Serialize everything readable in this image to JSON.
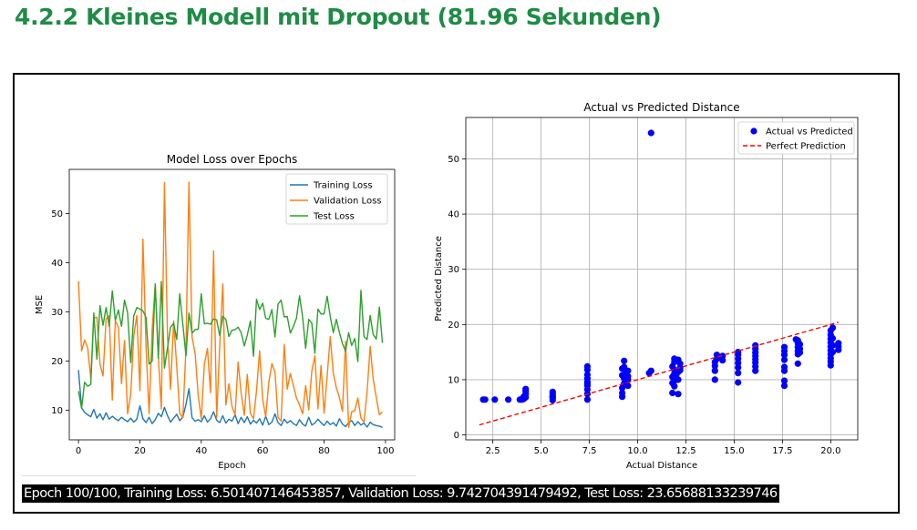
{
  "heading": "4.2.2 Kleines Modell mit Dropout (81.96 Sekunden)",
  "console_line": "Epoch 100/100, Training Loss: 6.501407146453857, Validation Loss: 9.742704391479492, Test Loss: 23.65688133239746",
  "colors": {
    "heading": "#1e8c45",
    "training": "#1f77b4",
    "validation": "#ff7f0e",
    "test": "#2ca02c",
    "scatter": "#0000ff",
    "perfect": "#ff0000"
  },
  "chart_data": [
    {
      "type": "line",
      "title": "Model Loss over Epochs",
      "xlabel": "Epoch",
      "ylabel": "MSE",
      "xlim": [
        -3,
        103
      ],
      "ylim": [
        4,
        59
      ],
      "xticks": [
        "0",
        "20",
        "40",
        "60",
        "80",
        "100"
      ],
      "yticks": [
        "10",
        "20",
        "30",
        "40",
        "50"
      ],
      "grid": false,
      "legend": "top-right",
      "series": [
        {
          "name": "Training Loss",
          "values": [
            18.2,
            10.5,
            9.6,
            9.1,
            8.7,
            10.2,
            8.4,
            9.3,
            8.1,
            9.5,
            8.2,
            8.8,
            8.3,
            7.9,
            8.6,
            8.1,
            7.7,
            8.4,
            7.6,
            8.2,
            10.9,
            8.3,
            7.5,
            8.6,
            7.3,
            8.1,
            9.4,
            8.7,
            10.6,
            8.9,
            7.6,
            8.4,
            9.2,
            7.9,
            8.6,
            11.2,
            14.4,
            8.5,
            7.8,
            8.1,
            7.7,
            8.9,
            7.6,
            8.3,
            9.7,
            8.0,
            7.5,
            8.9,
            7.4,
            8.2,
            7.8,
            9.1,
            7.3,
            8.6,
            7.5,
            8.7,
            7.2,
            8.0,
            7.4,
            8.3,
            7.0,
            8.8,
            7.1,
            7.6,
            9.3,
            7.5,
            6.9,
            8.2,
            7.4,
            7.9,
            7.3,
            6.9,
            8.1,
            7.2,
            6.8,
            8.6,
            7.0,
            7.4,
            8.2,
            7.5,
            6.9,
            7.8,
            7.1,
            7.5,
            6.8,
            8.3,
            7.2,
            6.7,
            7.5,
            7.9,
            6.9,
            7.7,
            7.0,
            7.4,
            6.6,
            7.6,
            7.1,
            6.9,
            6.8,
            6.5
          ]
        },
        {
          "name": "Validation Loss",
          "values": [
            36.3,
            22.1,
            24.3,
            22.7,
            16.5,
            28.8,
            28.9,
            19.4,
            17.0,
            28.6,
            29.2,
            12.1,
            28.2,
            26.9,
            15.4,
            24.2,
            9.3,
            13.2,
            25.1,
            29.3,
            14.0,
            44.8,
            23.0,
            9.3,
            26.3,
            35.7,
            20.8,
            10.3,
            56.3,
            24.7,
            14.3,
            28.2,
            18.9,
            9.4,
            8.5,
            22.6,
            56.4,
            24.9,
            21.5,
            12.9,
            8.3,
            19.4,
            22.6,
            13.6,
            42.4,
            8.5,
            23.0,
            35.7,
            11.1,
            15.4,
            10.8,
            9.1,
            19.8,
            13.5,
            9.0,
            17.3,
            9.4,
            8.3,
            13.9,
            22.1,
            12.2,
            8.7,
            15.7,
            19.5,
            17.7,
            8.6,
            7.8,
            23.4,
            14.3,
            17.5,
            15.0,
            12.5,
            11.1,
            9.3,
            15.0,
            10.1,
            18.0,
            21.1,
            10.3,
            19.1,
            9.4,
            16.9,
            25.0,
            17.6,
            14.6,
            12.6,
            9.8,
            24.0,
            6.5,
            9.7,
            9.9,
            12.5,
            8.4,
            7.6,
            13.7,
            23.0,
            16.4,
            12.6,
            9.1,
            9.7
          ]
        },
        {
          "name": "Test Loss",
          "values": [
            13.9,
            10.4,
            15.7,
            14.9,
            15.3,
            29.8,
            20.4,
            31.3,
            27.3,
            30.9,
            27.1,
            34.3,
            28.3,
            30.4,
            27.1,
            32.4,
            29.8,
            19.7,
            29.2,
            30.9,
            30.6,
            30.2,
            28.9,
            19.4,
            20.0,
            35.7,
            20.6,
            36.2,
            18.6,
            22.7,
            26.9,
            27.7,
            24.4,
            33.7,
            27.5,
            21.1,
            29.8,
            25.7,
            26.4,
            26.5,
            33.7,
            27.6,
            27.7,
            27.5,
            28.6,
            28.4,
            25.2,
            29.1,
            28.5,
            25.0,
            26.3,
            26.4,
            26.9,
            25.8,
            23.1,
            25.3,
            28.2,
            21.0,
            32.6,
            30.5,
            31.8,
            28.7,
            28.5,
            30.5,
            24.9,
            31.6,
            32.4,
            29.0,
            29.1,
            25.7,
            27.1,
            28.7,
            33.3,
            29.0,
            22.6,
            28.5,
            27.7,
            21.6,
            30.6,
            29.6,
            29.6,
            33.2,
            29.1,
            25.8,
            28.5,
            25.8,
            23.6,
            22.0,
            25.8,
            23.2,
            24.6,
            19.9,
            34.4,
            25.0,
            24.4,
            29.3,
            25.4,
            24.5,
            31.0,
            23.7
          ]
        }
      ]
    },
    {
      "type": "scatter",
      "title": "Actual vs Predicted Distance",
      "xlabel": "Actual Distance",
      "ylabel": "Predicted Distance",
      "xlim": [
        1.1,
        21.4
      ],
      "ylim": [
        -0.9,
        57.5
      ],
      "xticks": [
        "2.5",
        "5.0",
        "7.5",
        "10.0",
        "12.5",
        "15.0",
        "17.5",
        "20.0"
      ],
      "yticks": [
        "0",
        "10",
        "20",
        "30",
        "40",
        "50"
      ],
      "grid": true,
      "legend": "top-right",
      "series": [
        {
          "name": "Actual vs Predicted",
          "points": [
            [
              2.0,
              6.4
            ],
            [
              2.1,
              6.4
            ],
            [
              2.6,
              6.4
            ],
            [
              3.3,
              6.4
            ],
            [
              3.9,
              6.4
            ],
            [
              4.0,
              6.4
            ],
            [
              4.1,
              6.5
            ],
            [
              4.2,
              6.8
            ],
            [
              4.2,
              7.4
            ],
            [
              4.2,
              7.9
            ],
            [
              4.2,
              8.3
            ],
            [
              4.1,
              6.9
            ],
            [
              5.6,
              6.3
            ],
            [
              5.6,
              6.7
            ],
            [
              5.6,
              7.1
            ],
            [
              5.6,
              7.5
            ],
            [
              5.6,
              7.8
            ],
            [
              5.6,
              6.9
            ],
            [
              7.4,
              6.4
            ],
            [
              7.4,
              7.4
            ],
            [
              7.4,
              8.2
            ],
            [
              7.4,
              8.9
            ],
            [
              7.4,
              9.6
            ],
            [
              7.4,
              10.2
            ],
            [
              7.4,
              10.9
            ],
            [
              7.4,
              11.8
            ],
            [
              7.4,
              12.4
            ],
            [
              7.4,
              9.2
            ],
            [
              9.2,
              6.9
            ],
            [
              9.2,
              7.6
            ],
            [
              9.2,
              8.5
            ],
            [
              9.3,
              9.3
            ],
            [
              9.3,
              10.2
            ],
            [
              9.2,
              10.8
            ],
            [
              9.4,
              11.5
            ],
            [
              9.3,
              12.3
            ],
            [
              9.3,
              13.4
            ],
            [
              9.5,
              8.9
            ],
            [
              9.5,
              10.0
            ],
            [
              9.5,
              10.6
            ],
            [
              9.5,
              11.6
            ],
            [
              9.2,
              12.0
            ],
            [
              9.4,
              9.7
            ],
            [
              10.6,
              11.2
            ],
            [
              10.7,
              11.6
            ],
            [
              10.7,
              54.7
            ],
            [
              11.8,
              7.6
            ],
            [
              11.9,
              8.8
            ],
            [
              11.9,
              9.8
            ],
            [
              11.8,
              10.5
            ],
            [
              11.9,
              11.1
            ],
            [
              11.9,
              11.8
            ],
            [
              11.8,
              12.4
            ],
            [
              11.9,
              13.2
            ],
            [
              11.9,
              13.8
            ],
            [
              12.1,
              7.4
            ],
            [
              12.1,
              10.0
            ],
            [
              12.1,
              11.4
            ],
            [
              12.2,
              12.1
            ],
            [
              12.2,
              12.9
            ],
            [
              12.1,
              13.6
            ],
            [
              12.0,
              10.9
            ],
            [
              11.8,
              9.4
            ],
            [
              12.2,
              11.7
            ],
            [
              14.0,
              10.0
            ],
            [
              14.0,
              11.6
            ],
            [
              14.0,
              12.5
            ],
            [
              14.0,
              13.2
            ],
            [
              14.1,
              13.8
            ],
            [
              14.1,
              14.5
            ],
            [
              14.4,
              13.5
            ],
            [
              14.4,
              14.3
            ],
            [
              15.2,
              9.5
            ],
            [
              15.2,
              11.2
            ],
            [
              15.2,
              12.2
            ],
            [
              15.2,
              13.0
            ],
            [
              15.2,
              13.8
            ],
            [
              15.2,
              14.5
            ],
            [
              15.2,
              15.0
            ],
            [
              16.1,
              11.6
            ],
            [
              16.1,
              12.4
            ],
            [
              16.1,
              13.1
            ],
            [
              16.1,
              13.7
            ],
            [
              16.1,
              14.3
            ],
            [
              16.1,
              14.9
            ],
            [
              16.1,
              15.6
            ],
            [
              16.1,
              16.2
            ],
            [
              17.6,
              8.9
            ],
            [
              17.6,
              9.8
            ],
            [
              17.6,
              11.6
            ],
            [
              17.6,
              12.3
            ],
            [
              17.6,
              13.6
            ],
            [
              17.6,
              14.5
            ],
            [
              17.6,
              15.2
            ],
            [
              17.6,
              15.9
            ],
            [
              18.3,
              12.9
            ],
            [
              18.3,
              14.6
            ],
            [
              18.3,
              15.2
            ],
            [
              18.3,
              15.9
            ],
            [
              18.3,
              16.6
            ],
            [
              18.3,
              17.1
            ],
            [
              18.4,
              14.9
            ],
            [
              18.4,
              15.6
            ],
            [
              18.4,
              16.4
            ],
            [
              18.2,
              17.3
            ],
            [
              20.0,
              12.6
            ],
            [
              20.0,
              13.3
            ],
            [
              20.0,
              13.9
            ],
            [
              20.0,
              14.6
            ],
            [
              20.0,
              15.3
            ],
            [
              20.0,
              16.0
            ],
            [
              20.0,
              16.7
            ],
            [
              20.0,
              17.4
            ],
            [
              20.0,
              18.1
            ],
            [
              20.0,
              18.9
            ],
            [
              20.1,
              19.4
            ],
            [
              20.1,
              15.0
            ],
            [
              20.1,
              16.2
            ],
            [
              20.1,
              17.5
            ],
            [
              20.4,
              15.4
            ],
            [
              20.4,
              16.0
            ],
            [
              20.4,
              16.6
            ]
          ]
        },
        {
          "name": "Perfect Prediction",
          "line": [
            [
              1.8,
              1.8
            ],
            [
              20.4,
              20.4
            ]
          ]
        }
      ]
    }
  ]
}
